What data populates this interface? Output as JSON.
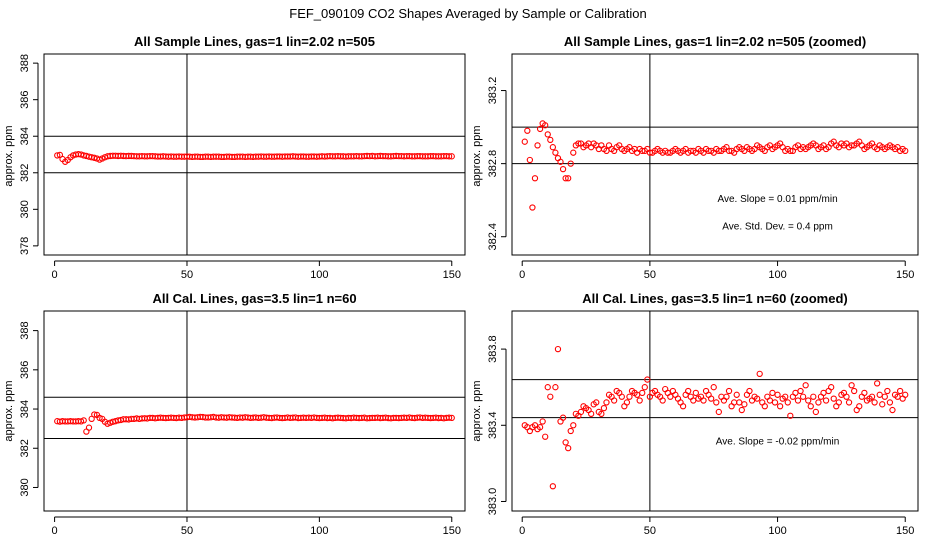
{
  "figure": {
    "title": "FEF_090109  CO2 Shapes Averaged by Sample or Calibration"
  },
  "chart_data": [
    {
      "type": "scatter",
      "title": "All Sample Lines, gas=1 lin=2.02 n=505",
      "ylabel": "approx. ppm",
      "xlim": [
        -4,
        155
      ],
      "ylim": [
        377.5,
        388.5
      ],
      "xticks": [
        0,
        50,
        100,
        150
      ],
      "xtick_labels": [
        "0",
        "50",
        "100",
        "150"
      ],
      "yticks": [
        378,
        380,
        382,
        384,
        386,
        388
      ],
      "ytick_labels": [
        "378",
        "380",
        "382",
        "384",
        "386",
        "388"
      ],
      "hlines": [
        382,
        384
      ],
      "vlines": [
        50
      ],
      "annotations": [],
      "series": [
        {
          "color": "#ff0000",
          "x_start": 1,
          "x_step": 1,
          "y": [
            382.95,
            382.98,
            382.75,
            382.6,
            382.7,
            382.85,
            382.95,
            383.0,
            383.02,
            383.0,
            382.95,
            382.92,
            382.88,
            382.85,
            382.82,
            382.78,
            382.72,
            382.78,
            382.85,
            382.9,
            382.92,
            382.93,
            382.93,
            382.92,
            382.93,
            382.92,
            382.91,
            382.92,
            382.92,
            382.91,
            382.9,
            382.9,
            382.91,
            382.9,
            382.9,
            382.91,
            382.91,
            382.9,
            382.89,
            382.89,
            382.9,
            382.89,
            382.88,
            382.89,
            382.88,
            382.88,
            382.89,
            382.88,
            382.88,
            382.89,
            382.88,
            382.87,
            382.88,
            382.88,
            382.87,
            382.87,
            382.88,
            382.88,
            382.87,
            382.88,
            382.88,
            382.88,
            382.87,
            382.87,
            382.88,
            382.88,
            382.87,
            382.87,
            382.88,
            382.88,
            382.88,
            382.87,
            382.88,
            382.88,
            382.87,
            382.88,
            382.88,
            382.89,
            382.88,
            382.88,
            382.89,
            382.88,
            382.88,
            382.89,
            382.89,
            382.88,
            382.89,
            382.89,
            382.89,
            382.9,
            382.89,
            382.88,
            382.89,
            382.89,
            382.88,
            382.88,
            382.89,
            382.89,
            382.88,
            382.89,
            382.9,
            382.89,
            382.9,
            382.91,
            382.9,
            382.9,
            382.91,
            382.9,
            382.9,
            382.89,
            382.9,
            382.9,
            382.9,
            382.91,
            382.9,
            382.9,
            382.91,
            382.92,
            382.91,
            382.92,
            382.9,
            382.91,
            382.92,
            382.91,
            382.91,
            382.9,
            382.9,
            382.91,
            382.92,
            382.91,
            382.91,
            382.9,
            382.91,
            382.91,
            382.9,
            382.9,
            382.91,
            382.91,
            382.9,
            382.9,
            382.9,
            382.91,
            382.91,
            382.9,
            382.9,
            382.9,
            382.91,
            382.91,
            382.9,
            382.9
          ]
        }
      ]
    },
    {
      "type": "scatter",
      "title": "All Sample Lines, gas=1 lin=2.02 n=505 (zoomed)",
      "ylabel": "approx. ppm",
      "xlim": [
        -4,
        155
      ],
      "ylim": [
        382.3,
        383.4
      ],
      "xticks": [
        0,
        50,
        100,
        150
      ],
      "xtick_labels": [
        "0",
        "50",
        "100",
        "150"
      ],
      "yticks": [
        382.4,
        382.8,
        383.2
      ],
      "ytick_labels": [
        "382.4",
        "382.8",
        "383.2"
      ],
      "hlines": [
        382.8,
        383.0
      ],
      "vlines": [
        50
      ],
      "annotations": [
        {
          "text": "Ave. Slope =  0.01  ppm/min",
          "x": 100,
          "y": 382.59
        },
        {
          "text": "Ave. Std. Dev. =  0.4  ppm",
          "x": 100,
          "y": 382.44
        }
      ],
      "series": [
        {
          "color": "#ff0000",
          "x_start": 1,
          "x_step": 1,
          "y": [
            382.92,
            382.98,
            382.82,
            382.56,
            382.72,
            382.9,
            382.99,
            383.02,
            383.01,
            382.96,
            382.93,
            382.89,
            382.86,
            382.83,
            382.81,
            382.77,
            382.72,
            382.72,
            382.8,
            382.86,
            382.9,
            382.91,
            382.91,
            382.89,
            382.9,
            382.91,
            382.89,
            382.91,
            382.9,
            382.88,
            382.9,
            382.88,
            382.87,
            382.9,
            382.88,
            382.87,
            382.89,
            382.9,
            382.88,
            382.87,
            382.88,
            382.89,
            382.87,
            382.88,
            382.86,
            382.88,
            382.87,
            382.87,
            382.88,
            382.86,
            382.86,
            382.87,
            382.88,
            382.87,
            382.86,
            382.87,
            382.86,
            382.86,
            382.87,
            382.88,
            382.87,
            382.86,
            382.87,
            382.88,
            382.86,
            382.87,
            382.87,
            382.86,
            382.88,
            382.87,
            382.86,
            382.88,
            382.87,
            382.87,
            382.86,
            382.88,
            382.87,
            382.87,
            382.88,
            382.89,
            382.87,
            382.87,
            382.86,
            382.88,
            382.89,
            382.88,
            382.87,
            382.89,
            382.88,
            382.87,
            382.88,
            382.9,
            382.89,
            382.88,
            382.87,
            382.89,
            382.9,
            382.88,
            382.89,
            382.9,
            382.91,
            382.89,
            382.87,
            382.88,
            382.87,
            382.87,
            382.89,
            382.9,
            382.88,
            382.89,
            382.88,
            382.89,
            382.9,
            382.91,
            382.9,
            382.88,
            382.89,
            382.9,
            382.88,
            382.89,
            382.91,
            382.92,
            382.9,
            382.89,
            382.91,
            382.9,
            382.91,
            382.89,
            382.9,
            382.9,
            382.91,
            382.92,
            382.9,
            382.88,
            382.89,
            382.9,
            382.91,
            382.89,
            382.88,
            382.9,
            382.89,
            382.88,
            382.89,
            382.9,
            382.89,
            382.88,
            382.89,
            382.87,
            382.88,
            382.87
          ]
        }
      ]
    },
    {
      "type": "scatter",
      "title": "All Cal. Lines, gas=3.5 lin=1 n=60",
      "ylabel": "approx. ppm",
      "xlim": [
        -4,
        155
      ],
      "ylim": [
        378.8,
        389.0
      ],
      "xticks": [
        0,
        50,
        100,
        150
      ],
      "xtick_labels": [
        "0",
        "50",
        "100",
        "150"
      ],
      "yticks": [
        380,
        382,
        384,
        386,
        388
      ],
      "ytick_labels": [
        "380",
        "382",
        "384",
        "386",
        "388"
      ],
      "hlines": [
        382.5,
        384.6
      ],
      "vlines": [
        50
      ],
      "annotations": [],
      "series": [
        {
          "color": "#ff0000",
          "x_start": 1,
          "x_step": 1,
          "y": [
            383.38,
            383.36,
            383.38,
            383.37,
            383.37,
            383.38,
            383.37,
            383.37,
            383.38,
            383.37,
            383.42,
            382.85,
            383.05,
            383.5,
            383.72,
            383.7,
            383.55,
            383.5,
            383.35,
            383.25,
            383.3,
            383.35,
            383.38,
            383.42,
            383.44,
            383.48,
            383.48,
            383.47,
            383.5,
            383.5,
            383.52,
            383.5,
            383.52,
            383.53,
            383.52,
            383.55,
            383.55,
            383.53,
            383.55,
            383.56,
            383.55,
            383.54,
            383.55,
            383.56,
            383.55,
            383.54,
            383.56,
            383.55,
            383.57,
            383.58,
            383.6,
            383.58,
            383.57,
            383.58,
            383.6,
            383.59,
            383.57,
            383.57,
            383.58,
            383.6,
            383.57,
            383.56,
            383.58,
            383.57,
            383.56,
            383.58,
            383.57,
            383.56,
            383.55,
            383.57,
            383.56,
            383.58,
            383.57,
            383.55,
            383.56,
            383.57,
            383.55,
            383.56,
            383.58,
            383.56,
            383.55,
            383.54,
            383.56,
            383.57,
            383.55,
            383.54,
            383.55,
            383.57,
            383.55,
            383.56,
            383.57,
            383.54,
            383.55,
            383.56,
            383.55,
            383.56,
            383.55,
            383.57,
            383.55,
            383.54,
            383.55,
            383.56,
            383.54,
            383.55,
            383.53,
            383.55,
            383.56,
            383.55,
            383.54,
            383.53,
            383.55,
            383.54,
            383.56,
            383.55,
            383.54,
            383.55,
            383.56,
            383.53,
            383.54,
            383.55,
            383.55,
            383.56,
            383.54,
            383.55,
            383.56,
            383.54,
            383.53,
            383.55,
            383.55,
            383.54,
            383.55,
            383.56,
            383.55,
            383.57,
            383.55,
            383.54,
            383.56,
            383.57,
            383.55,
            383.56,
            383.55,
            383.54,
            383.55,
            383.56,
            383.54,
            383.55,
            383.53,
            383.55,
            383.56,
            383.55
          ]
        }
      ]
    },
    {
      "type": "scatter",
      "title": "All Cal. Lines, gas=3.5 lin=1 n=60 (zoomed)",
      "ylabel": "approx. ppm",
      "xlim": [
        -4,
        155
      ],
      "ylim": [
        382.95,
        384.0
      ],
      "xticks": [
        0,
        50,
        100,
        150
      ],
      "xtick_labels": [
        "0",
        "50",
        "100",
        "150"
      ],
      "yticks": [
        383.0,
        383.4,
        383.8
      ],
      "ytick_labels": [
        "383.0",
        "383.4",
        "383.8"
      ],
      "hlines": [
        383.44,
        383.64
      ],
      "vlines": [
        50
      ],
      "annotations": [
        {
          "text": "Ave. Slope =  -0.02  ppm/min",
          "x": 100,
          "y": 383.3
        }
      ],
      "series": [
        {
          "color": "#ff0000",
          "x_start": 1,
          "x_step": 1,
          "y": [
            383.4,
            383.39,
            383.37,
            383.39,
            383.4,
            383.38,
            383.39,
            383.42,
            383.34,
            383.6,
            383.55,
            383.08,
            383.6,
            383.8,
            383.42,
            383.44,
            383.31,
            383.28,
            383.37,
            383.4,
            383.46,
            383.45,
            383.47,
            383.5,
            383.49,
            383.48,
            383.46,
            383.51,
            383.52,
            383.47,
            383.46,
            383.49,
            383.52,
            383.56,
            383.55,
            383.53,
            383.58,
            383.57,
            383.55,
            383.5,
            383.52,
            383.55,
            383.58,
            383.57,
            383.56,
            383.53,
            383.57,
            383.6,
            383.64,
            383.55,
            383.57,
            383.58,
            383.56,
            383.55,
            383.53,
            383.59,
            383.57,
            383.55,
            383.58,
            383.56,
            383.54,
            383.52,
            383.5,
            383.56,
            383.58,
            383.55,
            383.53,
            383.57,
            383.54,
            383.55,
            383.53,
            383.58,
            383.56,
            383.54,
            383.6,
            383.52,
            383.47,
            383.55,
            383.53,
            383.55,
            383.58,
            383.5,
            383.52,
            383.56,
            383.52,
            383.48,
            383.51,
            383.56,
            383.58,
            383.53,
            383.55,
            383.54,
            383.67,
            383.52,
            383.5,
            383.55,
            383.53,
            383.57,
            383.52,
            383.56,
            383.5,
            383.54,
            383.55,
            383.52,
            383.45,
            383.55,
            383.57,
            383.53,
            383.58,
            383.55,
            383.61,
            383.53,
            383.5,
            383.55,
            383.47,
            383.52,
            383.55,
            383.57,
            383.53,
            383.58,
            383.6,
            383.54,
            383.5,
            383.52,
            383.56,
            383.57,
            383.55,
            383.52,
            383.61,
            383.58,
            383.48,
            383.5,
            383.55,
            383.57,
            383.53,
            383.54,
            383.55,
            383.52,
            383.62,
            383.56,
            383.51,
            383.55,
            383.58,
            383.52,
            383.48,
            383.56,
            383.55,
            383.58,
            383.54,
            383.56
          ]
        }
      ]
    }
  ]
}
